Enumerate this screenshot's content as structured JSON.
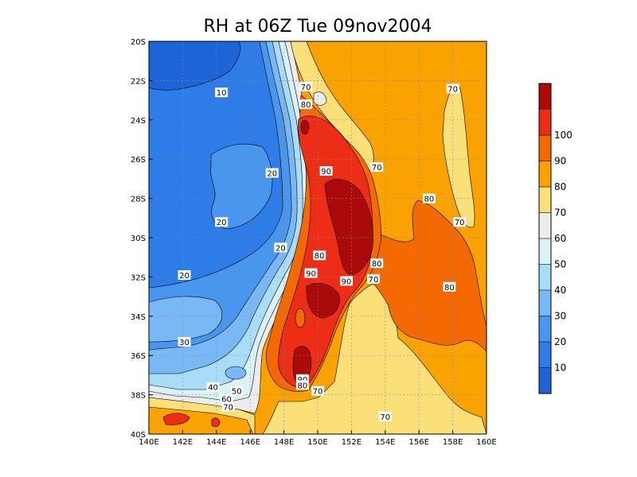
{
  "chart_data": {
    "type": "heatmap",
    "title": "RH at 06Z Tue 09nov2004",
    "xlabel": "",
    "ylabel": "",
    "x_ticks": [
      "140E",
      "142E",
      "144E",
      "146E",
      "148E",
      "150E",
      "152E",
      "154E",
      "156E",
      "158E",
      "160E"
    ],
    "y_ticks": [
      "20S",
      "22S",
      "24S",
      "26S",
      "28S",
      "30S",
      "32S",
      "34S",
      "36S",
      "38S",
      "40S"
    ],
    "xlim": [
      140,
      160
    ],
    "ylim": [
      -40,
      -20
    ],
    "grid": true,
    "colorbar": {
      "labels": [
        "10",
        "20",
        "30",
        "40",
        "50",
        "60",
        "70",
        "80",
        "90",
        "100"
      ],
      "levels": [
        0,
        10,
        20,
        30,
        40,
        50,
        60,
        70,
        80,
        90,
        100,
        110
      ],
      "colors": [
        "#1f64d6",
        "#2d7ce8",
        "#4896ee",
        "#79b8f5",
        "#a8dcf7",
        "#d9f2f8",
        "#ececec",
        "#fbe07a",
        "#f9a200",
        "#f56a00",
        "#ee2d16",
        "#aa0a0a"
      ]
    },
    "contour_labels": [
      {
        "text": "10",
        "lon": 144.3,
        "lat": -22.6
      },
      {
        "text": "20",
        "lon": 147.3,
        "lat": -26.7
      },
      {
        "text": "20",
        "lon": 144.3,
        "lat": -29.2
      },
      {
        "text": "20",
        "lon": 147.8,
        "lat": -30.5
      },
      {
        "text": "20",
        "lon": 142.1,
        "lat": -31.9
      },
      {
        "text": "30",
        "lon": 142.1,
        "lat": -35.3
      },
      {
        "text": "40",
        "lon": 143.8,
        "lat": -37.6
      },
      {
        "text": "50",
        "lon": 145.2,
        "lat": -37.8
      },
      {
        "text": "60",
        "lon": 144.6,
        "lat": -38.2
      },
      {
        "text": "70",
        "lon": 144.7,
        "lat": -38.6
      },
      {
        "text": "70",
        "lon": 149.3,
        "lat": -22.3
      },
      {
        "text": "80",
        "lon": 149.3,
        "lat": -23.2
      },
      {
        "text": "70",
        "lon": 158.0,
        "lat": -22.4
      },
      {
        "text": "90",
        "lon": 150.5,
        "lat": -26.6
      },
      {
        "text": "70",
        "lon": 153.5,
        "lat": -26.4
      },
      {
        "text": "80",
        "lon": 156.6,
        "lat": -28.0
      },
      {
        "text": "70",
        "lon": 158.4,
        "lat": -29.2
      },
      {
        "text": "80",
        "lon": 150.1,
        "lat": -30.9
      },
      {
        "text": "80",
        "lon": 153.5,
        "lat": -31.3
      },
      {
        "text": "90",
        "lon": 149.6,
        "lat": -31.8
      },
      {
        "text": "90",
        "lon": 151.7,
        "lat": -32.2
      },
      {
        "text": "70",
        "lon": 153.3,
        "lat": -32.1
      },
      {
        "text": "80",
        "lon": 157.8,
        "lat": -32.5
      },
      {
        "text": "90",
        "lon": 149.1,
        "lat": -37.2
      },
      {
        "text": "80",
        "lon": 149.1,
        "lat": -37.5
      },
      {
        "text": "70",
        "lon": 150.0,
        "lat": -37.8
      },
      {
        "text": "70",
        "lon": 154.0,
        "lat": -39.1
      }
    ]
  }
}
